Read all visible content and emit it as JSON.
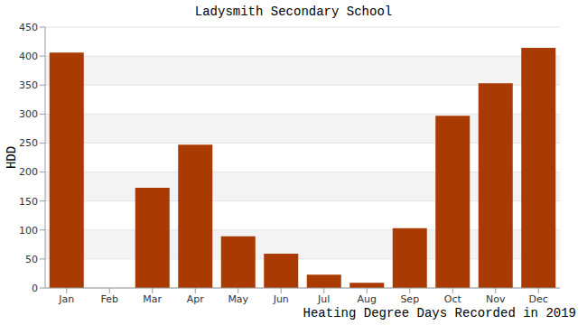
{
  "chart_data": {
    "type": "bar",
    "title": "Ladysmith Secondary School",
    "x_label": "Heating Degree Days Recorded in 2019",
    "y_label": "HDD",
    "categories": [
      "Jan",
      "Feb",
      "Mar",
      "Apr",
      "May",
      "Jun",
      "Jul",
      "Aug",
      "Sep",
      "Oct",
      "Nov",
      "Dec"
    ],
    "values": [
      406,
      null,
      173,
      247,
      89,
      59,
      23,
      9,
      103,
      297,
      353,
      414
    ],
    "color": "#a93a02",
    "ylim": [
      0,
      450
    ],
    "yticks": [
      0,
      50,
      100,
      150,
      200,
      250,
      300,
      350,
      400,
      450
    ],
    "grid": true
  }
}
